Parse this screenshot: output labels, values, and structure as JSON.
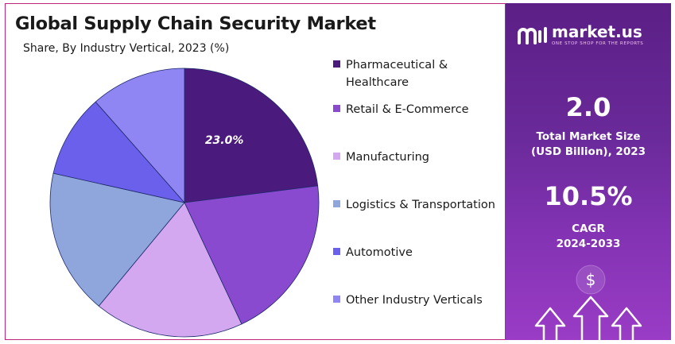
{
  "header": {
    "title": "Global Supply Chain Security Market",
    "subtitle": "Share, By Industry Vertical, 2023 (%)"
  },
  "chart_data": {
    "type": "pie",
    "title": "Global Supply Chain Security Market",
    "subtitle": "Share, By Industry Vertical, 2023 (%)",
    "legend_position": "right",
    "slices": [
      {
        "name": "Pharmaceutical & Healthcare",
        "value": 23.0,
        "color": "#4a1a7c",
        "label": "23.0%"
      },
      {
        "name": "Retail & E-Commerce",
        "value": 20.0,
        "color": "#8a4ad0"
      },
      {
        "name": "Manufacturing",
        "value": 18.0,
        "color": "#d4a8f0"
      },
      {
        "name": "Logistics & Transportation",
        "value": 17.5,
        "color": "#8fa6dc"
      },
      {
        "name": "Automotive",
        "value": 10.0,
        "color": "#6b60ec"
      },
      {
        "name": "Other Industry Verticals",
        "value": 11.5,
        "color": "#8f85f3"
      }
    ]
  },
  "panel": {
    "brand": "market.us",
    "tagline": "ONE STOP SHOP FOR THE REPORTS",
    "market_size_value": "2.0",
    "market_size_label_line1": "Total Market Size",
    "market_size_label_line2": "(USD Billion), 2023",
    "cagr_value": "10.5%",
    "cagr_label_line1": "CAGR",
    "cagr_label_line2": "2024-2033",
    "currency_symbol": "$",
    "icons": [
      "market-us-logo-icon",
      "dollar-coin-icon",
      "growth-arrows-icon"
    ]
  },
  "colors": {
    "border_accent": "#c0257a",
    "panel_top": "#5b1f86",
    "panel_bottom": "#9a3cc6"
  }
}
